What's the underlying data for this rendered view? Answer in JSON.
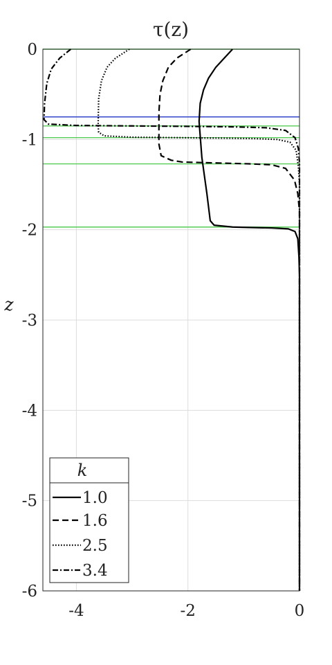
{
  "chart_data": {
    "type": "line",
    "title": "τ(z)",
    "xlabel": "",
    "ylabel": "z",
    "xlim": [
      -4.6,
      0
    ],
    "ylim": [
      -6,
      0
    ],
    "xticks": [
      -4,
      -2,
      0
    ],
    "xtick_labels": [
      "-4",
      "-2",
      "0"
    ],
    "yticks": [
      0,
      -1,
      -2,
      -3,
      -4,
      -5,
      -6
    ],
    "ytick_labels": [
      "0",
      "-1",
      "-2",
      "-3",
      "-4",
      "-5",
      "-6"
    ],
    "grid": true,
    "legend": {
      "title": "k",
      "position": "bottom-left",
      "entries": [
        "1.0",
        "1.6",
        "2.5",
        "3.4"
      ]
    },
    "reference_lines": {
      "blue": {
        "color": "#3344cc",
        "z": [
          -0.75
        ]
      },
      "green": {
        "color": "#55cc55",
        "z": [
          0,
          -0.85,
          -0.98,
          -1.27,
          -1.97
        ]
      }
    },
    "series": [
      {
        "name": "1.0",
        "line_style": "solid",
        "points": [
          [
            -1.2,
            0
          ],
          [
            -1.35,
            -0.1
          ],
          [
            -1.5,
            -0.2
          ],
          [
            -1.63,
            -0.32
          ],
          [
            -1.72,
            -0.45
          ],
          [
            -1.78,
            -0.6
          ],
          [
            -1.8,
            -0.8
          ],
          [
            -1.75,
            -1.2
          ],
          [
            -1.66,
            -1.6
          ],
          [
            -1.6,
            -1.9
          ],
          [
            -1.53,
            -1.95
          ],
          [
            -1.2,
            -1.97
          ],
          [
            -0.9,
            -1.975
          ],
          [
            -0.5,
            -1.98
          ],
          [
            -0.2,
            -1.99
          ],
          [
            -0.08,
            -2.02
          ],
          [
            -0.03,
            -2.1
          ],
          [
            -0.01,
            -2.3
          ],
          [
            0,
            -2.5
          ],
          [
            0,
            -6
          ]
        ]
      },
      {
        "name": "1.6",
        "line_style": "dashed",
        "points": [
          [
            -1.95,
            0
          ],
          [
            -2.2,
            -0.1
          ],
          [
            -2.35,
            -0.2
          ],
          [
            -2.45,
            -0.35
          ],
          [
            -2.5,
            -0.5
          ],
          [
            -2.52,
            -0.7
          ],
          [
            -2.52,
            -1.05
          ],
          [
            -2.48,
            -1.18
          ],
          [
            -2.3,
            -1.23
          ],
          [
            -2.1,
            -1.25
          ],
          [
            -1.5,
            -1.26
          ],
          [
            -0.9,
            -1.27
          ],
          [
            -0.5,
            -1.28
          ],
          [
            -0.25,
            -1.32
          ],
          [
            -0.09,
            -1.45
          ],
          [
            -0.03,
            -1.6
          ],
          [
            0,
            -1.8
          ],
          [
            0,
            -6
          ]
        ]
      },
      {
        "name": "2.5",
        "line_style": "dotted",
        "points": [
          [
            -3.05,
            0
          ],
          [
            -3.3,
            -0.1
          ],
          [
            -3.45,
            -0.2
          ],
          [
            -3.55,
            -0.35
          ],
          [
            -3.6,
            -0.55
          ],
          [
            -3.61,
            -0.85
          ],
          [
            -3.6,
            -0.92
          ],
          [
            -3.5,
            -0.96
          ],
          [
            -3.0,
            -0.975
          ],
          [
            -2.2,
            -0.98
          ],
          [
            -1.4,
            -0.985
          ],
          [
            -0.8,
            -0.99
          ],
          [
            -0.4,
            -1.0
          ],
          [
            -0.17,
            -1.03
          ],
          [
            -0.06,
            -1.12
          ],
          [
            -0.02,
            -1.3
          ],
          [
            0,
            -1.5
          ],
          [
            0,
            -6
          ]
        ]
      },
      {
        "name": "3.4",
        "line_style": "dashdot",
        "points": [
          [
            -4.1,
            0
          ],
          [
            -4.3,
            -0.1
          ],
          [
            -4.45,
            -0.22
          ],
          [
            -4.53,
            -0.38
          ],
          [
            -4.57,
            -0.6
          ],
          [
            -4.58,
            -0.78
          ],
          [
            -4.5,
            -0.83
          ],
          [
            -4.0,
            -0.845
          ],
          [
            -3.0,
            -0.85
          ],
          [
            -2.0,
            -0.855
          ],
          [
            -1.2,
            -0.86
          ],
          [
            -0.6,
            -0.87
          ],
          [
            -0.25,
            -0.9
          ],
          [
            -0.08,
            -0.98
          ],
          [
            -0.02,
            -1.1
          ],
          [
            0,
            -1.25
          ],
          [
            0,
            -6
          ]
        ]
      }
    ]
  }
}
